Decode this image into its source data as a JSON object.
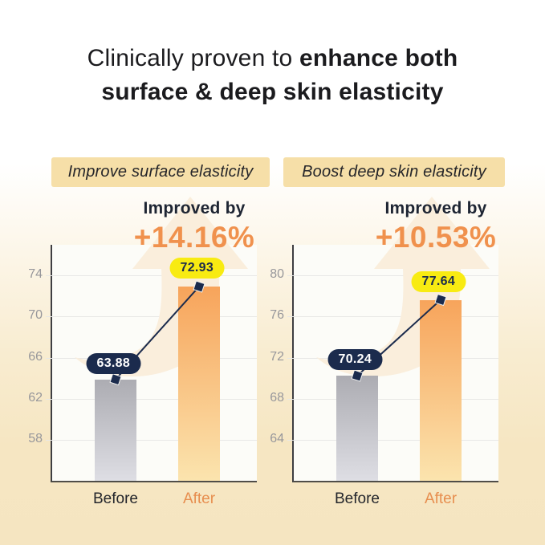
{
  "title": {
    "regular": "Clinically proven to",
    "bold1": "enhance both",
    "line2": "surface & deep skin elasticity"
  },
  "colors": {
    "accent": "#F0914D",
    "after-label": "#E78E4F",
    "navy": "#1B2B4D",
    "yellow": "#F8EB12",
    "badge-bg": "#F6DFA8",
    "grid": "#E8E8E6",
    "tick": "#97979B",
    "bef-top": "#ACACB2",
    "bef-bot": "#DEDEE4",
    "aft-top": "#F7A45B",
    "aft-bot": "#FBE4AE",
    "wm": "#FAEEDC"
  },
  "chart_data": [
    {
      "type": "bar",
      "badge": "Improve surface elasticity",
      "improved_by_label": "Improved by",
      "improvement": "+14.16%",
      "categories": [
        "Before",
        "After"
      ],
      "values": [
        63.88,
        72.93
      ],
      "value_labels": [
        "63.88",
        "72.93"
      ],
      "yticks": [
        74,
        70,
        66,
        62,
        58
      ],
      "ylim": [
        54,
        77
      ],
      "xlabel": "",
      "ylabel": "",
      "grid": true,
      "legend": "none"
    },
    {
      "type": "bar",
      "badge": "Boost deep skin elasticity",
      "improved_by_label": "Improved by",
      "improvement": "+10.53%",
      "categories": [
        "Before",
        "After"
      ],
      "values": [
        70.24,
        77.64
      ],
      "value_labels": [
        "70.24",
        "77.64"
      ],
      "yticks": [
        80,
        76,
        72,
        68,
        64
      ],
      "ylim": [
        60,
        83
      ],
      "xlabel": "",
      "ylabel": "",
      "grid": true,
      "legend": "none"
    }
  ]
}
